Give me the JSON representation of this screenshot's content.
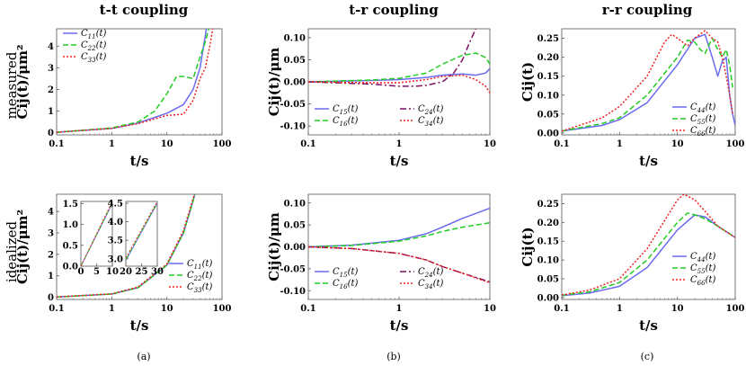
{
  "column_titles": [
    "t-t coupling",
    "t-r coupling",
    "r-r coupling"
  ],
  "row_labels": [
    "measured",
    "idealized"
  ],
  "subfig_labels": [
    "(a)",
    "(b)",
    "(c)"
  ],
  "colors": {
    "c1": "#6b6bf0",
    "c2": "#22cc22",
    "c3": "#ee2020",
    "c4": "#7a1060"
  },
  "chart_data": [
    {
      "id": "a-measured",
      "type": "line",
      "xscale": "log",
      "xlim": [
        0.1,
        100
      ],
      "ylim": [
        -0.1,
        4.8
      ],
      "xticks": [
        0.1,
        1,
        10,
        100
      ],
      "xtick_labels": [
        "0.1",
        "1",
        "10",
        "100"
      ],
      "yticks": [
        0,
        1,
        2,
        3,
        4
      ],
      "ytick_labels": [
        "0",
        "1",
        "2",
        "3",
        "4"
      ],
      "xlabel": "t/s",
      "ylabel": "Cij(t)/μm²",
      "legend_position": "top-left",
      "series": [
        {
          "name": "C11(t)",
          "color_key": "c1",
          "dash": "solid",
          "x": [
            0.1,
            1,
            3,
            10,
            20,
            30,
            40,
            50,
            60
          ],
          "y": [
            0.02,
            0.2,
            0.45,
            0.9,
            1.3,
            2.0,
            3.0,
            4.5,
            6.0
          ]
        },
        {
          "name": "C22(t)",
          "color_key": "c2",
          "dash": "dashed",
          "x": [
            0.1,
            1,
            3,
            6,
            10,
            15,
            20,
            30,
            40,
            50,
            60
          ],
          "y": [
            0.02,
            0.22,
            0.5,
            1.0,
            1.8,
            2.6,
            2.6,
            2.5,
            3.5,
            4.2,
            5.0
          ]
        },
        {
          "name": "C33(t)",
          "color_key": "c3",
          "dash": "dotted",
          "x": [
            0.1,
            1,
            3,
            10,
            20,
            30,
            40,
            50,
            60,
            70
          ],
          "y": [
            0.02,
            0.2,
            0.42,
            0.8,
            0.85,
            1.5,
            2.5,
            3.0,
            4.0,
            5.0
          ]
        }
      ]
    },
    {
      "id": "b-measured",
      "type": "line",
      "xscale": "log",
      "xlim": [
        0.1,
        10
      ],
      "ylim": [
        -0.12,
        0.12
      ],
      "xticks": [
        0.1,
        1,
        10
      ],
      "xtick_labels": [
        "0.1",
        "1",
        "10"
      ],
      "yticks": [
        -0.1,
        -0.05,
        0,
        0.05,
        0.1
      ],
      "ytick_labels": [
        "-0.10",
        "-0.05",
        "0.00",
        "0.05",
        "0.10"
      ],
      "xlabel": "t/s",
      "ylabel": "Cij(t)/μm",
      "legend_position": "bottom-center",
      "series": [
        {
          "name": "C15(t)",
          "color_key": "c1",
          "dash": "solid",
          "x": [
            0.1,
            0.5,
            1,
            2,
            3,
            5,
            7,
            9,
            10
          ],
          "y": [
            0.0,
            0.003,
            0.005,
            0.01,
            0.015,
            0.018,
            0.015,
            0.02,
            0.03
          ]
        },
        {
          "name": "C16(t)",
          "color_key": "c2",
          "dash": "dashed",
          "x": [
            0.1,
            0.5,
            1,
            2,
            3,
            5,
            7,
            9,
            10
          ],
          "y": [
            0.0,
            0.004,
            0.008,
            0.02,
            0.04,
            0.06,
            0.065,
            0.055,
            0.04
          ]
        },
        {
          "name": "C24(t)",
          "color_key": "c4",
          "dash": "dashdot",
          "x": [
            0.1,
            0.5,
            1,
            1.5,
            2,
            3,
            4,
            5,
            6,
            7
          ],
          "y": [
            0.0,
            -0.005,
            -0.01,
            -0.01,
            -0.008,
            0.0,
            0.02,
            0.05,
            0.09,
            0.12
          ]
        },
        {
          "name": "C34(t)",
          "color_key": "c3",
          "dash": "dotted",
          "x": [
            0.1,
            0.5,
            1,
            2,
            3,
            5,
            7,
            9,
            10
          ],
          "y": [
            0.0,
            -0.002,
            -0.002,
            0.005,
            0.012,
            0.015,
            0.005,
            -0.01,
            -0.025
          ]
        }
      ]
    },
    {
      "id": "c-measured",
      "type": "line",
      "xscale": "log",
      "xlim": [
        0.1,
        100
      ],
      "ylim": [
        -0.005,
        0.275
      ],
      "xticks": [
        0.1,
        1,
        10,
        100
      ],
      "xtick_labels": [
        "0.1",
        "1",
        "10",
        "100"
      ],
      "yticks": [
        0,
        0.05,
        0.1,
        0.15,
        0.2,
        0.25
      ],
      "ytick_labels": [
        "0.00",
        "0.05",
        "0.10",
        "0.15",
        "0.20",
        "0.25"
      ],
      "xlabel": "t/s",
      "ylabel": "Cij(t)",
      "legend_position": "bottom-right",
      "series": [
        {
          "name": "C44(t)",
          "color_key": "c1",
          "dash": "solid",
          "x": [
            0.1,
            0.5,
            1,
            3,
            10,
            20,
            30,
            40,
            50,
            60,
            70,
            80,
            90,
            100
          ],
          "y": [
            0.005,
            0.02,
            0.035,
            0.08,
            0.18,
            0.25,
            0.26,
            0.2,
            0.15,
            0.19,
            0.2,
            0.1,
            0.05,
            0.02
          ]
        },
        {
          "name": "C55(t)",
          "color_key": "c2",
          "dash": "dashed",
          "x": [
            0.1,
            0.5,
            1,
            3,
            10,
            15,
            20,
            25,
            30,
            40,
            50,
            60,
            70,
            80,
            90
          ],
          "y": [
            0.005,
            0.025,
            0.04,
            0.1,
            0.2,
            0.245,
            0.24,
            0.22,
            0.21,
            0.25,
            0.22,
            0.2,
            0.22,
            0.18,
            0.12
          ]
        },
        {
          "name": "C66(t)",
          "color_key": "c3",
          "dash": "dotted",
          "x": [
            0.1,
            0.5,
            1,
            3,
            6,
            8,
            10,
            15,
            20,
            30,
            40,
            50,
            60,
            70,
            80,
            90
          ],
          "y": [
            0.005,
            0.04,
            0.07,
            0.15,
            0.24,
            0.26,
            0.25,
            0.23,
            0.25,
            0.27,
            0.25,
            0.24,
            0.2,
            0.15,
            0.1,
            0.05
          ]
        }
      ]
    },
    {
      "id": "a-idealized",
      "type": "line",
      "xscale": "log",
      "xlim": [
        0.1,
        100
      ],
      "ylim": [
        -0.1,
        4.8
      ],
      "xticks": [
        0.1,
        1,
        10,
        100
      ],
      "xtick_labels": [
        "0.1",
        "1",
        "10",
        "100"
      ],
      "yticks": [
        0,
        1,
        2,
        3,
        4
      ],
      "ytick_labels": [
        "0",
        "1",
        "2",
        "3",
        "4"
      ],
      "xlabel": "t/s",
      "ylabel": "Cij(t)/μm²",
      "legend_position": "bottom-right",
      "series": [
        {
          "name": "C11(t)",
          "color_key": "c1",
          "dash": "solid",
          "x": [
            0.1,
            1,
            3,
            10,
            20,
            30,
            35
          ],
          "y": [
            0.015,
            0.15,
            0.45,
            1.5,
            3.0,
            4.5,
            5.2
          ]
        },
        {
          "name": "C22(t)",
          "color_key": "c2",
          "dash": "dashed",
          "x": [
            0.1,
            1,
            3,
            10,
            20,
            30,
            35
          ],
          "y": [
            0.015,
            0.15,
            0.45,
            1.5,
            3.0,
            4.5,
            5.2
          ]
        },
        {
          "name": "C33(t)",
          "color_key": "c3",
          "dash": "dotted",
          "x": [
            0.1,
            1,
            3,
            10,
            20,
            30,
            35
          ],
          "y": [
            0.016,
            0.16,
            0.48,
            1.55,
            3.1,
            4.6,
            5.3
          ]
        }
      ]
    },
    {
      "id": "a-idealized-inset1",
      "type": "line",
      "xscale": "linear",
      "xlim": [
        0,
        10
      ],
      "ylim": [
        0,
        1.55
      ],
      "xticks": [
        0,
        5,
        10
      ],
      "xtick_labels": [
        "0",
        "5",
        "10"
      ],
      "yticks": [
        0,
        0.5,
        1.0,
        1.5
      ],
      "ytick_labels": [
        "0.0",
        "0.5",
        "1.0",
        "1.5"
      ],
      "series": [
        {
          "color_key": "c1",
          "dash": "solid",
          "x": [
            0,
            10
          ],
          "y": [
            0,
            1.5
          ]
        },
        {
          "color_key": "c2",
          "dash": "dashed",
          "x": [
            0,
            10
          ],
          "y": [
            0,
            1.52
          ]
        },
        {
          "color_key": "c3",
          "dash": "dotted",
          "x": [
            0,
            10
          ],
          "y": [
            0,
            1.55
          ]
        }
      ]
    },
    {
      "id": "a-idealized-inset2",
      "type": "line",
      "xscale": "linear",
      "xlim": [
        20,
        30
      ],
      "ylim": [
        2.8,
        4.55
      ],
      "xticks": [
        20,
        25,
        30
      ],
      "xtick_labels": [
        "20",
        "25",
        "30"
      ],
      "yticks": [
        3.0,
        3.5,
        4.0,
        4.5
      ],
      "ytick_labels": [
        "3.0",
        "3.5",
        "4.0",
        "4.5"
      ],
      "series": [
        {
          "color_key": "c1",
          "dash": "solid",
          "x": [
            20,
            30
          ],
          "y": [
            2.95,
            4.5
          ]
        },
        {
          "color_key": "c2",
          "dash": "dashed",
          "x": [
            20,
            30
          ],
          "y": [
            2.98,
            4.52
          ]
        },
        {
          "color_key": "c3",
          "dash": "dotted",
          "x": [
            20,
            30
          ],
          "y": [
            3.02,
            4.55
          ]
        }
      ]
    },
    {
      "id": "b-idealized",
      "type": "line",
      "xscale": "log",
      "xlim": [
        0.1,
        10
      ],
      "ylim": [
        -0.12,
        0.12
      ],
      "xticks": [
        0.1,
        1,
        10
      ],
      "xtick_labels": [
        "0.1",
        "1",
        "10"
      ],
      "yticks": [
        -0.1,
        -0.05,
        0,
        0.05,
        0.1
      ],
      "ytick_labels": [
        "-0.10",
        "-0.05",
        "0.00",
        "0.05",
        "0.10"
      ],
      "xlabel": "t/s",
      "ylabel": "Cij(t)/μm",
      "legend_position": "bottom-center",
      "series": [
        {
          "name": "C15(t)",
          "color_key": "c1",
          "dash": "solid",
          "x": [
            0.1,
            0.3,
            1,
            2,
            3,
            5,
            10
          ],
          "y": [
            0.0,
            0.004,
            0.015,
            0.03,
            0.045,
            0.065,
            0.088
          ]
        },
        {
          "name": "C16(t)",
          "color_key": "c2",
          "dash": "dashed",
          "x": [
            0.1,
            0.3,
            1,
            2,
            3,
            5,
            10
          ],
          "y": [
            0.0,
            0.003,
            0.013,
            0.025,
            0.035,
            0.045,
            0.055
          ]
        },
        {
          "name": "C24(t)",
          "color_key": "c4",
          "dash": "dashdot",
          "x": [
            0.1,
            0.3,
            1,
            2,
            3,
            5,
            10
          ],
          "y": [
            0.0,
            -0.004,
            -0.015,
            -0.03,
            -0.045,
            -0.06,
            -0.08
          ]
        },
        {
          "name": "C34(t)",
          "color_key": "c3",
          "dash": "dotted",
          "x": [
            0.1,
            0.3,
            1,
            2,
            3,
            5,
            10
          ],
          "y": [
            0.0,
            -0.004,
            -0.015,
            -0.03,
            -0.045,
            -0.06,
            -0.082
          ]
        }
      ]
    },
    {
      "id": "c-idealized",
      "type": "line",
      "xscale": "log",
      "xlim": [
        0.1,
        100
      ],
      "ylim": [
        -0.005,
        0.275
      ],
      "xticks": [
        0.1,
        1,
        10,
        100
      ],
      "xtick_labels": [
        "0.1",
        "1",
        "10",
        "100"
      ],
      "yticks": [
        0,
        0.05,
        0.1,
        0.15,
        0.2,
        0.25
      ],
      "ytick_labels": [
        "0.00",
        "0.05",
        "0.10",
        "0.15",
        "0.20",
        "0.25"
      ],
      "xlabel": "t/s",
      "ylabel": "Cij(t)",
      "legend_position": "bottom-right",
      "series": [
        {
          "name": "C44(t)",
          "color_key": "c1",
          "dash": "solid",
          "x": [
            0.1,
            0.3,
            1,
            3,
            10,
            20,
            30,
            50,
            100
          ],
          "y": [
            0.005,
            0.012,
            0.03,
            0.08,
            0.18,
            0.22,
            0.215,
            0.19,
            0.16
          ]
        },
        {
          "name": "C55(t)",
          "color_key": "c2",
          "dash": "dashed",
          "x": [
            0.1,
            0.3,
            1,
            3,
            10,
            15,
            20,
            30,
            50,
            100
          ],
          "y": [
            0.006,
            0.015,
            0.04,
            0.1,
            0.2,
            0.225,
            0.22,
            0.21,
            0.19,
            0.16
          ]
        },
        {
          "name": "C66(t)",
          "color_key": "c3",
          "dash": "dotted",
          "x": [
            0.1,
            0.3,
            1,
            3,
            10,
            13,
            20,
            30,
            50,
            100
          ],
          "y": [
            0.007,
            0.02,
            0.05,
            0.13,
            0.26,
            0.275,
            0.26,
            0.23,
            0.19,
            0.16
          ]
        }
      ]
    }
  ]
}
